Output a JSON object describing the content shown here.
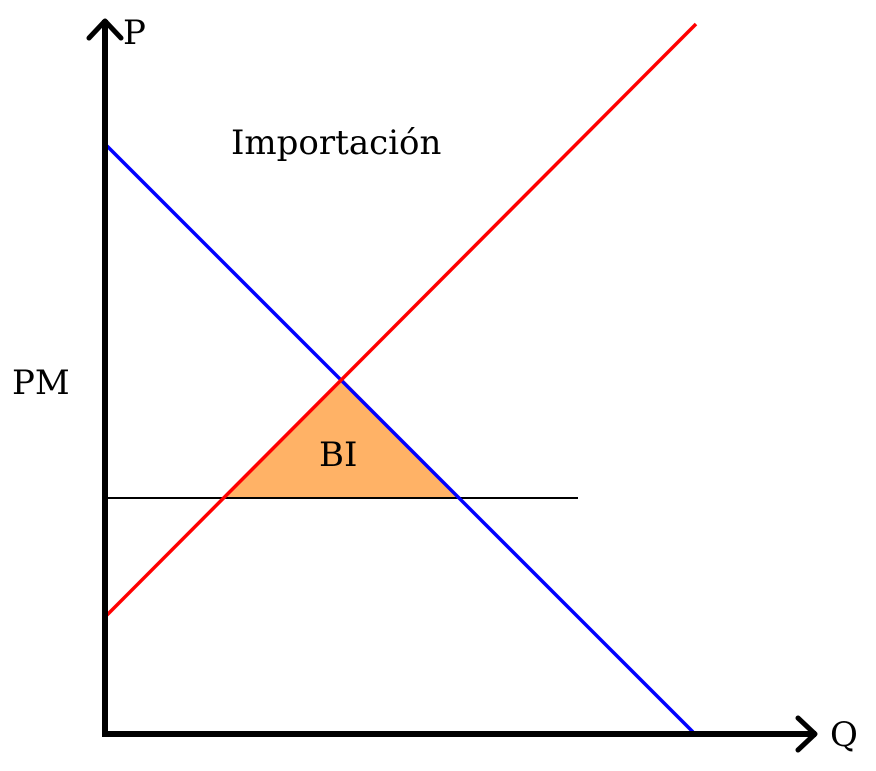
{
  "diagram": {
    "axes": {
      "y_label": "P",
      "x_label": "Q"
    },
    "labels": {
      "title": "Importación",
      "price_label": "PM",
      "area_label": "BI"
    },
    "colors": {
      "demand": "#0000ff",
      "supply": "#ff0000",
      "area_fill": "#ffb266",
      "axis": "#000000",
      "price_line": "#000000"
    }
  }
}
